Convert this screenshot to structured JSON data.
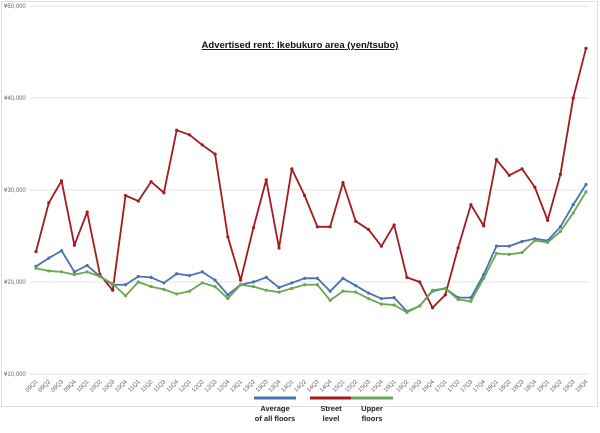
{
  "chart_data": {
    "type": "line",
    "title": "Advertised rent: Ikebukuro area (yen/tsubo)",
    "xlabel": "",
    "ylabel": "",
    "ylim": [
      10000,
      50000
    ],
    "yticks": [
      "¥10,000",
      "¥20,000",
      "¥30,000",
      "¥40,000",
      "¥50,000"
    ],
    "ytick_values": [
      10000,
      20000,
      30000,
      40000,
      50000
    ],
    "grid": true,
    "legend_placement": "bottom",
    "categories": [
      "09Q1",
      "09Q2",
      "09Q3",
      "09Q4",
      "10Q1",
      "10Q2",
      "10Q3",
      "10Q4",
      "11Q1",
      "11Q2",
      "11Q3",
      "11Q4",
      "12Q1",
      "12Q2",
      "12Q3",
      "12Q4",
      "13Q1",
      "13Q2",
      "13Q3",
      "13Q4",
      "14Q1",
      "14Q2",
      "14Q3",
      "14Q4",
      "15Q1",
      "15Q2",
      "15Q3",
      "15Q4",
      "16Q1",
      "16Q2",
      "16Q3",
      "16Q4",
      "17Q1",
      "17Q2",
      "17Q3",
      "17Q4",
      "18Q1",
      "18Q2",
      "18Q3",
      "18Q4",
      "19Q1",
      "19Q2",
      "19Q3",
      "19Q4"
    ],
    "series": [
      {
        "name": "Average of all floors",
        "label_lines": [
          "Average",
          "of all floors"
        ],
        "color": "#4a72b0",
        "values": [
          21700,
          22600,
          23400,
          21100,
          21800,
          20600,
          19700,
          19700,
          20600,
          20500,
          19900,
          20900,
          20700,
          21100,
          20200,
          18600,
          19700,
          20000,
          20500,
          19400,
          19900,
          20400,
          20400,
          19000,
          20400,
          19600,
          18800,
          18200,
          18300,
          16800,
          17400,
          19000,
          19300,
          18300,
          18300,
          20800,
          23900,
          23900,
          24400,
          24700,
          24500,
          26000,
          28400,
          30600
        ]
      },
      {
        "name": "Street level",
        "label_lines": [
          "Street",
          "level"
        ],
        "color": "#a31a1f",
        "values": [
          23300,
          28600,
          31000,
          24000,
          27600,
          20800,
          19100,
          29400,
          28800,
          30900,
          29700,
          36500,
          36000,
          34900,
          33900,
          24900,
          20200,
          25900,
          31100,
          23700,
          32300,
          29400,
          26000,
          26000,
          30800,
          26600,
          25700,
          23900,
          26200,
          20500,
          20000,
          17200,
          18600,
          23700,
          28400,
          26100,
          33300,
          31600,
          32300,
          30300,
          26700,
          31700,
          40000,
          45400
        ]
      },
      {
        "name": "Upper floors",
        "label_lines": [
          "Upper",
          "floors"
        ],
        "color": "#6aa84f",
        "values": [
          21500,
          21200,
          21100,
          20800,
          21100,
          20600,
          19800,
          18500,
          20000,
          19500,
          19200,
          18700,
          19000,
          19900,
          19500,
          18200,
          19700,
          19500,
          19100,
          18900,
          19300,
          19700,
          19700,
          18000,
          19000,
          18900,
          18200,
          17600,
          17500,
          16700,
          17400,
          19100,
          19300,
          18100,
          17900,
          20400,
          23100,
          23000,
          23200,
          24500,
          24300,
          25500,
          27500,
          29800
        ]
      }
    ]
  }
}
